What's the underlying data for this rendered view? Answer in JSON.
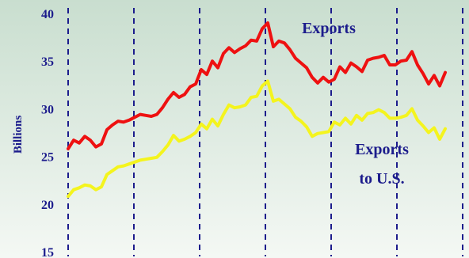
{
  "chart_data": {
    "type": "line",
    "title": "",
    "xlabel": "",
    "ylabel": "Billions",
    "ylim": [
      15,
      40
    ],
    "yticks": [
      15,
      20,
      25,
      30,
      35,
      40
    ],
    "grid": "vertical dashed lines",
    "colors": {
      "background_gradient_top": "#c9decf",
      "background_gradient_bottom": "#f4f8f4",
      "exports": "#ee1111",
      "exports_us": "#f4f41e",
      "text": "#1c1c8c",
      "grid": "#1c1c8c"
    },
    "series": [
      {
        "name": "Exports",
        "label_lines": [
          "Exports"
        ],
        "values": [
          25.8,
          26.7,
          26.4,
          27.1,
          26.7,
          26.0,
          26.3,
          27.8,
          28.3,
          28.7,
          28.6,
          28.8,
          29.1,
          29.4,
          29.3,
          29.2,
          29.4,
          30.1,
          31.0,
          31.7,
          31.2,
          31.5,
          32.3,
          32.6,
          34.1,
          33.6,
          35.0,
          34.3,
          35.8,
          36.4,
          35.9,
          36.3,
          36.6,
          37.2,
          37.1,
          38.4,
          39.0,
          36.5,
          37.1,
          36.9,
          36.2,
          35.3,
          34.8,
          34.3,
          33.3,
          32.7,
          33.3,
          32.8,
          33.1,
          34.4,
          33.8,
          34.8,
          34.4,
          33.9,
          35.1,
          35.3,
          35.4,
          35.6,
          34.6,
          34.6,
          35.0,
          35.1,
          36.0,
          34.6,
          33.7,
          32.6,
          33.5,
          32.4,
          33.8
        ]
      },
      {
        "name": "Exports to U.S.",
        "label_lines": [
          "Exports",
          "to U.S."
        ],
        "values": [
          20.8,
          21.5,
          21.7,
          22.0,
          21.9,
          21.5,
          21.8,
          23.1,
          23.5,
          23.9,
          24.0,
          24.2,
          24.4,
          24.6,
          24.7,
          24.8,
          24.9,
          25.5,
          26.2,
          27.2,
          26.6,
          26.8,
          27.1,
          27.5,
          28.4,
          27.9,
          28.9,
          28.2,
          29.4,
          30.4,
          30.1,
          30.2,
          30.4,
          31.2,
          31.3,
          32.4,
          32.9,
          30.8,
          31.0,
          30.5,
          30.0,
          29.1,
          28.7,
          28.1,
          27.1,
          27.4,
          27.5,
          27.6,
          28.6,
          28.3,
          29.0,
          28.4,
          29.3,
          28.8,
          29.5,
          29.6,
          29.9,
          29.6,
          29.0,
          29.0,
          29.1,
          29.3,
          30.0,
          28.8,
          28.2,
          27.5,
          28.0,
          26.8,
          27.9
        ]
      }
    ]
  }
}
